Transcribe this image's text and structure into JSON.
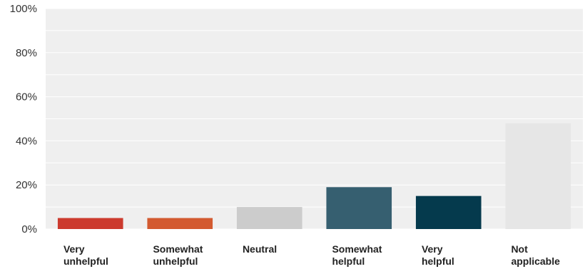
{
  "chart_data": {
    "type": "bar",
    "categories": [
      [
        "Very",
        "unhelpful"
      ],
      [
        "Somewhat",
        "unhelpful"
      ],
      [
        "Neutral"
      ],
      [
        "Somewhat",
        "helpful"
      ],
      [
        "Very",
        "helpful"
      ],
      [
        "Not",
        "applicable"
      ]
    ],
    "values": [
      5,
      5,
      10,
      19,
      15,
      48
    ],
    "colors": [
      "#cc3a2e",
      "#d35a30",
      "#cccccc",
      "#365f70",
      "#053a4d",
      "#e6e6e6"
    ],
    "ylim": [
      0,
      100
    ],
    "yticks": [
      0,
      20,
      40,
      60,
      80,
      100
    ],
    "ytick_labels": [
      "0%",
      "20%",
      "40%",
      "60%",
      "80%",
      "100%"
    ],
    "grid": true,
    "plot_background": "#efefef",
    "title": "",
    "xlabel": "",
    "ylabel": ""
  }
}
